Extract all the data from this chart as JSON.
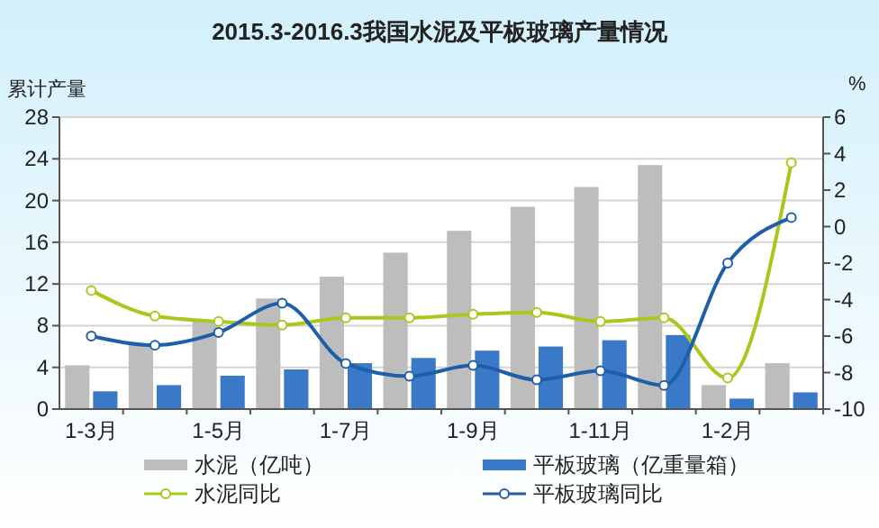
{
  "chart_data": {
    "type": "bar",
    "title": "2015.3-2016.3我国水泥及平板玻璃产量情况",
    "ylabel": "累计产量",
    "y2label": "%",
    "categories": [
      "1-3月",
      null,
      "1-5月",
      null,
      "1-7月",
      null,
      "1-9月",
      null,
      "1-11月",
      null,
      "1-2月",
      null
    ],
    "series": [
      {
        "name": "水泥（亿吨）",
        "color": "#bdbdbd",
        "values": [
          4.2,
          6.3,
          8.4,
          10.6,
          12.7,
          15.0,
          17.1,
          19.4,
          21.3,
          23.4,
          2.3,
          4.4
        ]
      },
      {
        "name": "平板玻璃（亿重量箱）",
        "color": "#3a78c8",
        "values": [
          1.7,
          2.3,
          3.2,
          3.8,
          4.4,
          4.9,
          5.6,
          6.0,
          6.6,
          7.1,
          1.0,
          1.6
        ]
      },
      {
        "name": "水泥同比",
        "type": "line",
        "axis": "y2",
        "color": "#a8c81e",
        "marker": "circle",
        "values": [
          -3.5,
          -4.9,
          -5.2,
          -5.4,
          -5.0,
          -5.0,
          -4.8,
          -4.7,
          -5.2,
          -5.0,
          -8.3,
          3.5
        ]
      },
      {
        "name": "平板玻璃同比",
        "type": "line",
        "axis": "y2",
        "color": "#1f5fa8",
        "marker": "circle",
        "values": [
          -6.0,
          -6.5,
          -5.8,
          -4.2,
          -7.5,
          -8.2,
          -7.6,
          -8.4,
          -7.9,
          -8.7,
          -2.0,
          0.5
        ]
      }
    ],
    "ylim": [
      0,
      28
    ],
    "yticks": [
      0,
      4,
      8,
      12,
      16,
      20,
      24,
      28
    ],
    "y2lim": [
      -10,
      6
    ],
    "y2ticks": [
      -10,
      -8,
      -6,
      -4,
      -2,
      0,
      2,
      4,
      6
    ],
    "grid": "y",
    "legend": "bottom"
  }
}
